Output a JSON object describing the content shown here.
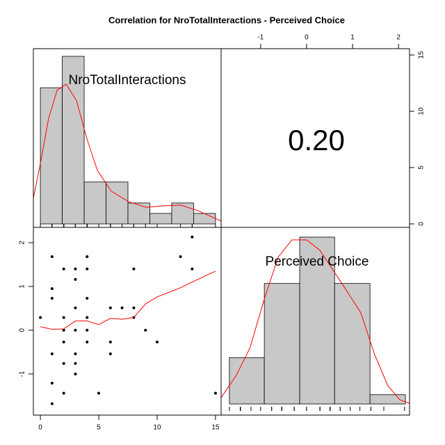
{
  "chart_data": {
    "type": "pairs",
    "title": "Correlation  for NroTotalInteractions - Perceived Choice",
    "xlim": [
      -0.6,
      15.48
    ],
    "xticks": [
      0,
      5,
      10,
      15
    ],
    "ylim": [
      -1.94,
      2.35
    ],
    "yticks": [
      -1,
      0,
      1,
      2
    ],
    "x2lim": [
      -1.86,
      2.24
    ],
    "x2ticks": [
      -1,
      0,
      1,
      2
    ],
    "y2lim": [
      -0.31,
      15.56
    ],
    "y2ticks": [
      0,
      5,
      10,
      15
    ],
    "correlation": {
      "value": 0.2,
      "label": "0.20"
    },
    "bar_color": "#c8c8c8",
    "line_color": "#ff0000",
    "variables": [
      {
        "name": "NroTotalInteractions",
        "bins": [
          0,
          1.875,
          3.75,
          5.625,
          7.5,
          9.375,
          11.25,
          13.125,
          15
        ],
        "counts": [
          13,
          16,
          4,
          4,
          2,
          1,
          2,
          1
        ],
        "hist_ylim": [
          -0.33,
          16.73
        ],
        "density_x": [
          -0.6,
          0,
          0.71,
          1.43,
          2.2,
          3.1,
          3.99,
          4.88,
          6.07,
          7.56,
          9.05,
          10.54,
          12.02,
          13.51,
          15.48
        ],
        "density_y": [
          2.46,
          5.78,
          10.09,
          12.75,
          13.35,
          11.75,
          8.1,
          5.11,
          3.12,
          2.12,
          1.59,
          1.73,
          1.79,
          1.26,
          0.27
        ]
      },
      {
        "name": "Perceived Choice",
        "bins": [
          -1.68,
          -0.92,
          -0.15,
          0.61,
          1.38,
          2.15
        ],
        "counts": [
          5,
          13,
          18,
          13,
          1
        ],
        "hist_ylim": [
          -1.2,
          19.05
        ],
        "density_x": [
          -1.86,
          -1.53,
          -1.23,
          -0.92,
          -0.62,
          -0.32,
          0,
          0.29,
          0.59,
          0.89,
          1.18,
          1.48,
          1.77,
          2.03,
          2.24
        ],
        "density_y": [
          0.68,
          3.08,
          6.08,
          11.33,
          15.83,
          17.7,
          17.7,
          16.58,
          14.33,
          12.08,
          9.83,
          5.33,
          1.95,
          0.45,
          0.08
        ]
      }
    ],
    "scatter": {
      "x": [
        0,
        1,
        1,
        1,
        1,
        1,
        1,
        2,
        2,
        2,
        2,
        2,
        2,
        3,
        3,
        3,
        3,
        3,
        3,
        3,
        4,
        4,
        4,
        4,
        4,
        4,
        5,
        6,
        6,
        6,
        7,
        8,
        8,
        8,
        9,
        10,
        12,
        13,
        13,
        15
      ],
      "y": [
        0.29,
        1.68,
        0.95,
        0.73,
        -0.54,
        -1.21,
        -1.68,
        1.4,
        0.29,
        0,
        -0.27,
        -0.76,
        -1.44,
        1.4,
        1.16,
        0.51,
        0,
        -0.54,
        -0.76,
        -1.0,
        1.68,
        1.4,
        0.73,
        0.29,
        0,
        -0.27,
        -1.44,
        0.51,
        -0.27,
        -0.54,
        0.51,
        1.4,
        0.51,
        0.29,
        0,
        -0.27,
        1.68,
        2.13,
        1.4,
        -1.44
      ]
    },
    "smooth": {
      "x": [
        0,
        1,
        2,
        3,
        4,
        5,
        6,
        7,
        8,
        9,
        10,
        12,
        13,
        15
      ],
      "y": [
        0.08,
        0.02,
        0.03,
        0.21,
        0.21,
        0.13,
        0.27,
        0.25,
        0.29,
        0.6,
        0.76,
        0.97,
        1.1,
        1.35
      ]
    }
  }
}
